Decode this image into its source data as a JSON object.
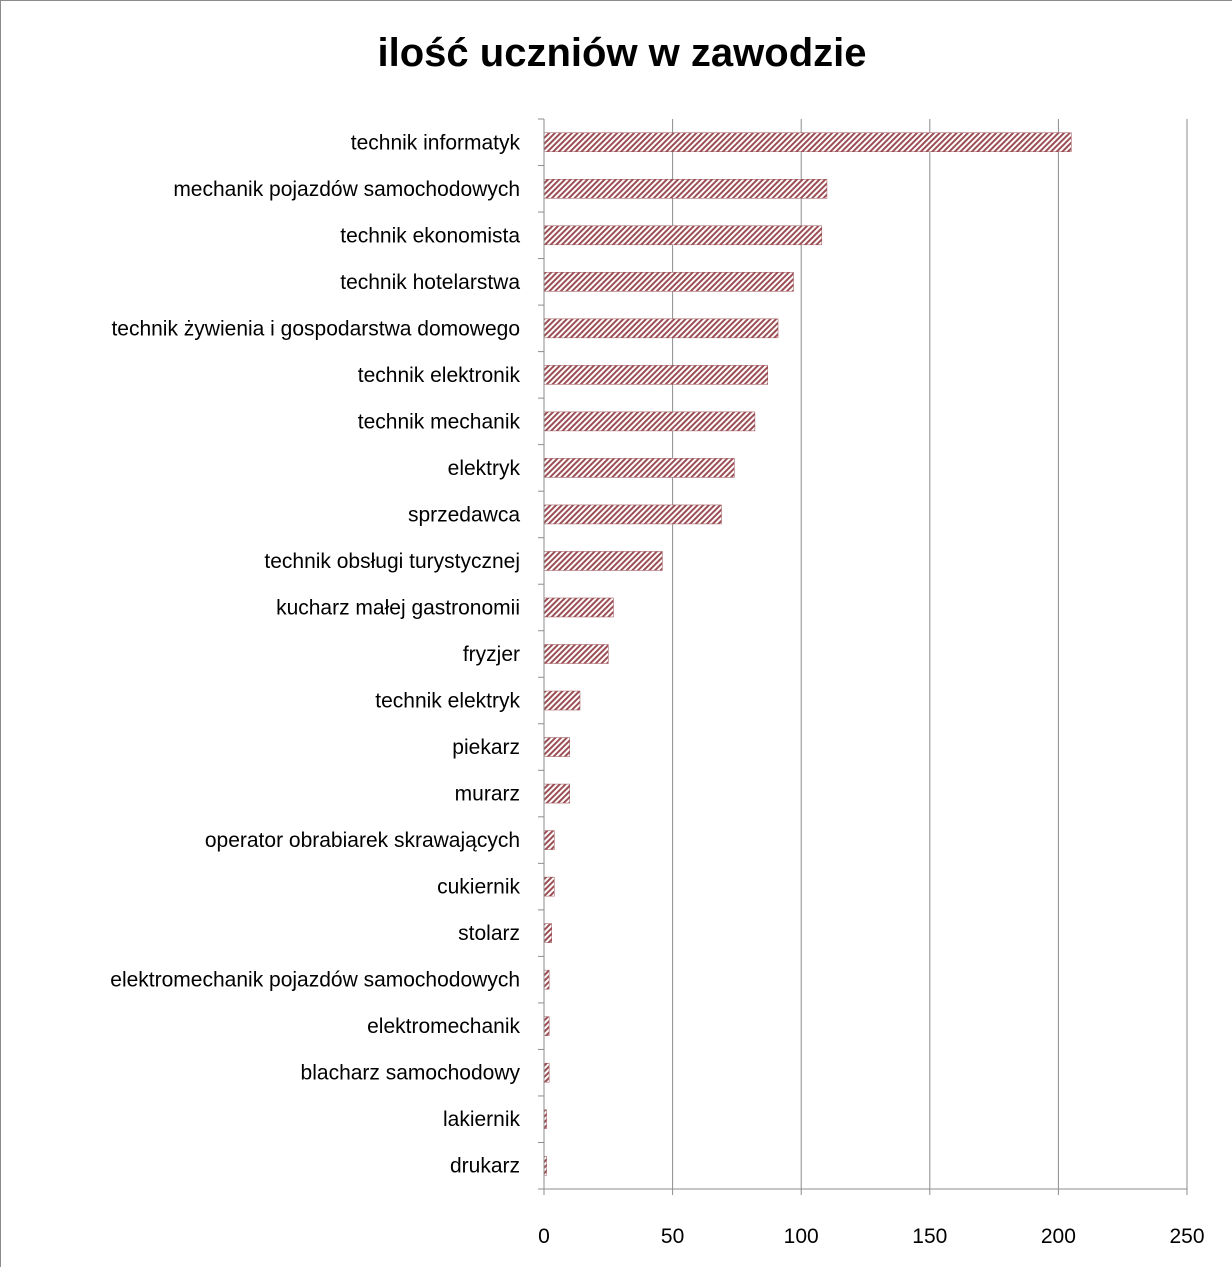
{
  "chart_data": {
    "type": "bar",
    "orientation": "horizontal",
    "title": "ilość uczniów w zawodzie",
    "xlabel": "",
    "ylabel": "",
    "categories": [
      "technik informatyk",
      "mechanik pojazdów samochodowych",
      "technik ekonomista",
      "technik hotelarstwa",
      "technik żywienia i gospodarstwa domowego",
      "technik elektronik",
      "technik mechanik",
      "elektryk",
      "sprzedawca",
      "technik obsługi turystycznej",
      "kucharz małej gastronomii",
      "fryzjer",
      "technik elektryk",
      "piekarz",
      "murarz",
      "operator obrabiarek skrawających",
      "cukiernik",
      "stolarz",
      "elektromechanik pojazdów samochodowych",
      "elektromechanik",
      "blacharz samochodowy",
      "lakiernik",
      "drukarz"
    ],
    "values": [
      205,
      110,
      108,
      97,
      91,
      87,
      82,
      74,
      69,
      46,
      27,
      25,
      14,
      10,
      10,
      4,
      4,
      3,
      2,
      2,
      2,
      1,
      1
    ],
    "xlim": [
      0,
      250
    ],
    "xticks": [
      "0",
      "50",
      "100",
      "150",
      "200",
      "250"
    ],
    "grid": "vertical",
    "legend": "none",
    "bar_color": "#9b4f55",
    "bar_pattern": "diagonal-hatch"
  }
}
